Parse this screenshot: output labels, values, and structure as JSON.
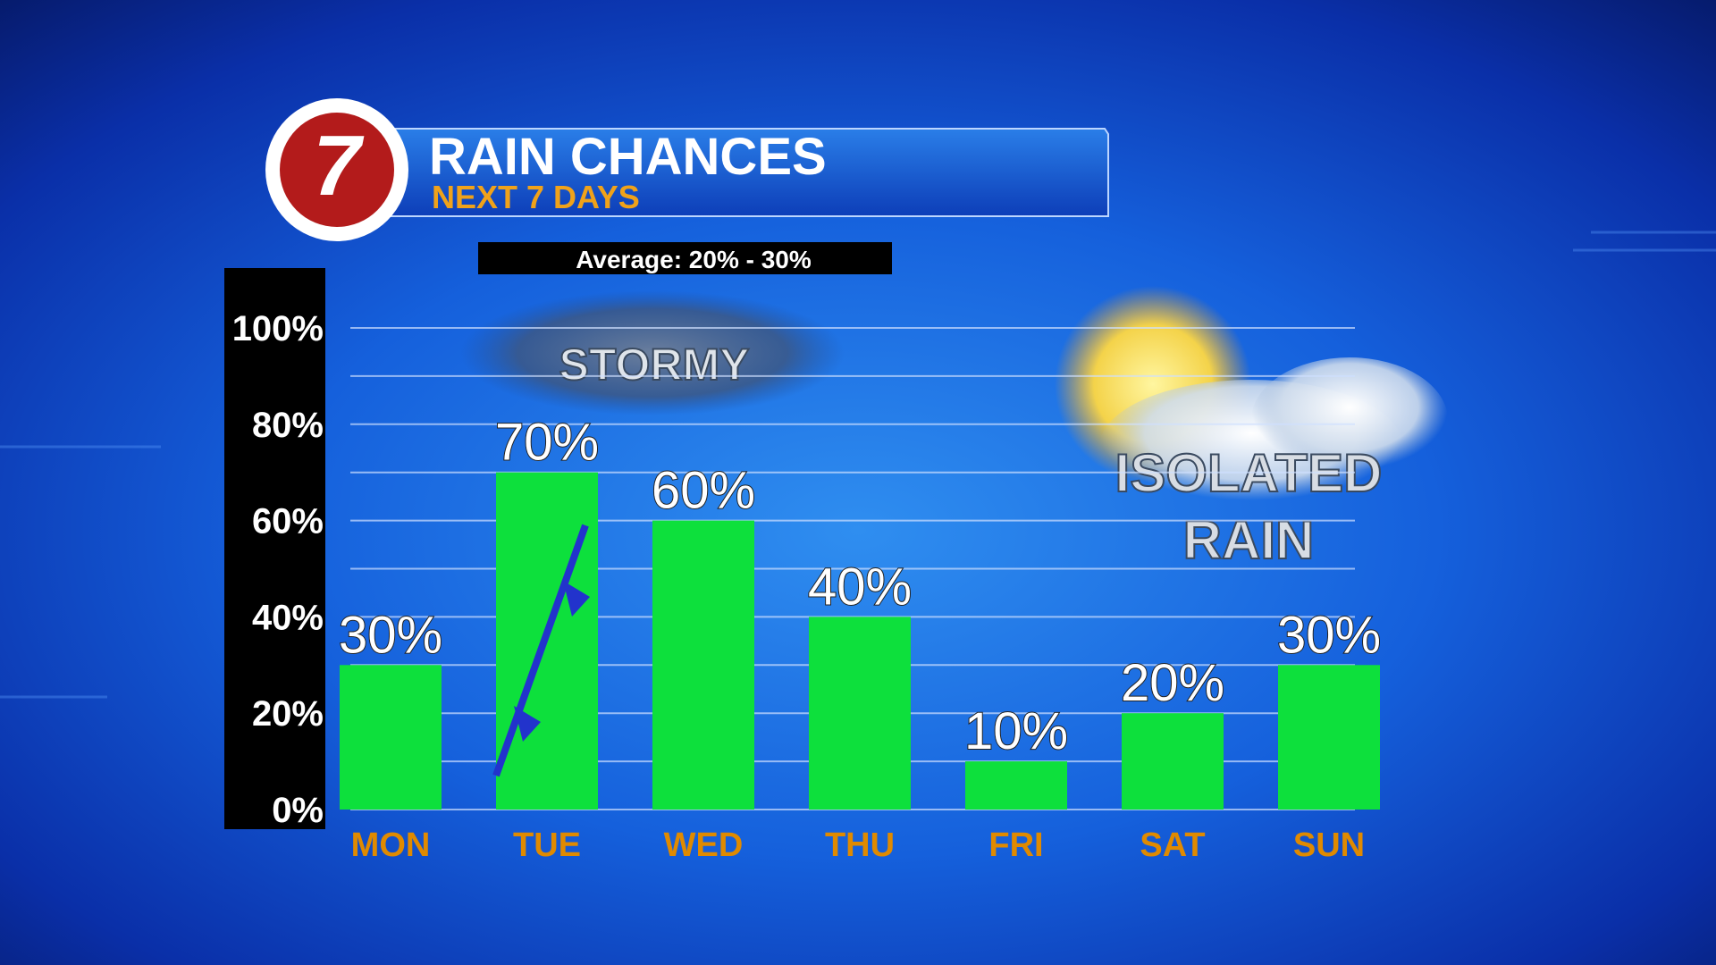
{
  "chart_data": {
    "type": "bar",
    "logo": "7",
    "title": "RAIN CHANCES",
    "subtitle": "NEXT 7 DAYS",
    "annotations": [
      "Average: 20% - 30%",
      "STORMY",
      "ISOLATED",
      "RAIN"
    ],
    "categories": [
      "MON",
      "TUE",
      "WED",
      "THU",
      "FRI",
      "SAT",
      "SUN"
    ],
    "values": [
      30,
      70,
      60,
      40,
      10,
      20,
      30
    ],
    "value_labels": [
      "30%",
      "70%",
      "60%",
      "40%",
      "10%",
      "20%",
      "30%"
    ],
    "color": "#0de03c",
    "ylim": [
      0,
      100
    ],
    "yticks": [
      {
        "value": 0,
        "label": "0%"
      },
      {
        "value": 20,
        "label": "20%"
      },
      {
        "value": 40,
        "label": "40%"
      },
      {
        "value": 60,
        "label": "60%"
      },
      {
        "value": 80,
        "label": "80%"
      },
      {
        "value": 100,
        "label": "100%"
      }
    ],
    "minor_yticks": [
      10,
      30,
      50,
      70,
      90
    ],
    "grid": true
  }
}
